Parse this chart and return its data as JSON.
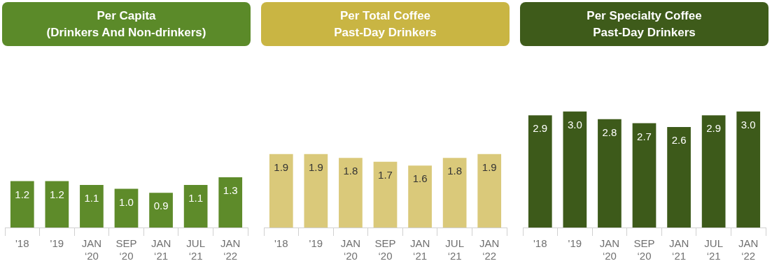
{
  "chart_data": [
    {
      "type": "bar",
      "title": "Per Capita\n(Drinkers And Non-drinkers)",
      "categories": [
        "'18",
        "'19",
        "JAN ‘20",
        "SEP ‘20",
        "JAN ‘21",
        "JUL ‘21",
        "JAN ‘22"
      ],
      "values": [
        1.2,
        1.2,
        1.1,
        1.0,
        0.9,
        1.1,
        1.3
      ],
      "value_labels": [
        "1.2",
        "1.2",
        "1.1",
        "1.0",
        "0.9",
        "1.1",
        "1.3"
      ],
      "color": "#5e8b2a"
    },
    {
      "type": "bar",
      "title": "Per Total Coffee\nPast-Day Drinkers",
      "categories": [
        "'18",
        "'19",
        "JAN ‘20",
        "SEP ‘20",
        "JAN ‘21",
        "JUL ‘21",
        "JAN ‘22"
      ],
      "values": [
        1.9,
        1.9,
        1.8,
        1.7,
        1.6,
        1.8,
        1.9
      ],
      "value_labels": [
        "1.9",
        "1.9",
        "1.8",
        "1.7",
        "1.6",
        "1.8",
        "1.9"
      ],
      "color": "#dac97a"
    },
    {
      "type": "bar",
      "title": "Per Specialty Coffee\nPast-Day Drinkers",
      "categories": [
        "'18",
        "'19",
        "JAN ‘20",
        "SEP ‘20",
        "JAN ‘21",
        "JUL ‘21",
        "JAN ‘22"
      ],
      "values": [
        2.9,
        3.0,
        2.8,
        2.7,
        2.6,
        2.9,
        3.0
      ],
      "value_labels": [
        "2.9",
        "3.0",
        "2.8",
        "2.7",
        "2.6",
        "2.9",
        "3.0"
      ],
      "color": "#3d5a1a"
    }
  ]
}
